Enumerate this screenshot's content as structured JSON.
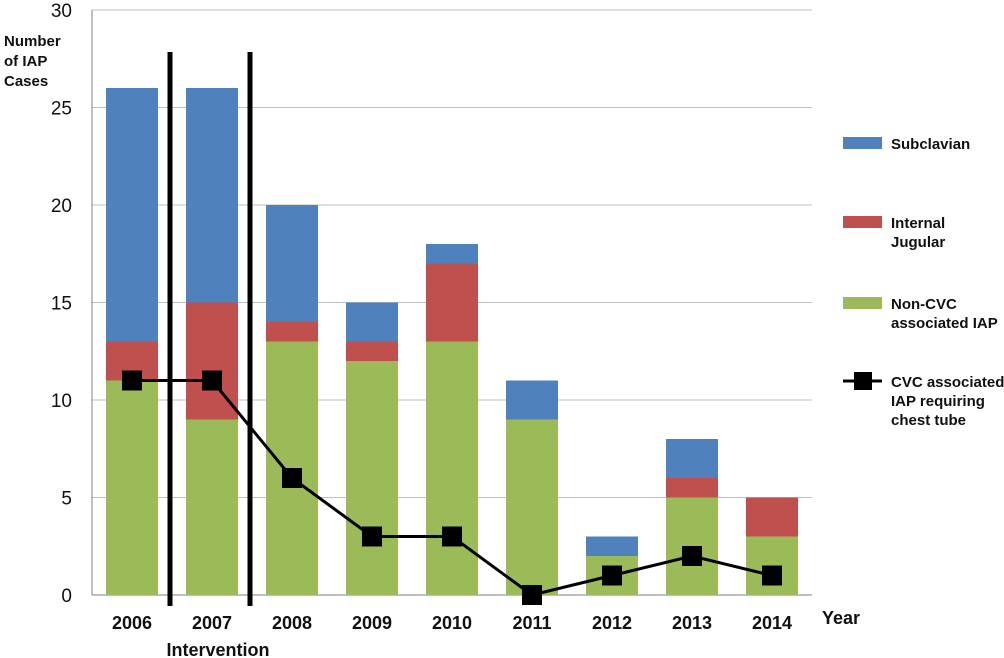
{
  "chart_data": {
    "type": "bar",
    "stacked": true,
    "title": "",
    "ylabel_lines": [
      "Number",
      "of IAP",
      "Cases"
    ],
    "xlabel": "Year",
    "ylim": [
      0,
      30
    ],
    "yticks": [
      0,
      5,
      10,
      15,
      20,
      25,
      30
    ],
    "grid": true,
    "legend_position": "right",
    "categories": [
      "2006",
      "2007",
      "2008",
      "2009",
      "2010",
      "2011",
      "2012",
      "2013",
      "2014"
    ],
    "series": [
      {
        "name_lines": [
          "Non-CVC",
          "associated IAP"
        ],
        "kind": "bar",
        "color": "#9BBB59",
        "values": [
          11,
          9,
          13,
          12,
          13,
          9,
          2,
          5,
          3
        ]
      },
      {
        "name_lines": [
          "Internal",
          "Jugular"
        ],
        "kind": "bar",
        "color": "#C0504D",
        "values": [
          2,
          6,
          1,
          1,
          4,
          0,
          0,
          1,
          2
        ]
      },
      {
        "name_lines": [
          "Subclavian"
        ],
        "kind": "bar",
        "color": "#4F81BD",
        "values": [
          13,
          11,
          6,
          2,
          1,
          2,
          1,
          2,
          0
        ]
      },
      {
        "name_lines": [
          "CVC associated",
          "IAP requiring",
          "chest tube"
        ],
        "kind": "line",
        "color": "#000000",
        "values": [
          11,
          11,
          6,
          3,
          3,
          0,
          1,
          2,
          1
        ]
      }
    ],
    "annotation": {
      "label": "Intervention",
      "category": "2007"
    }
  }
}
